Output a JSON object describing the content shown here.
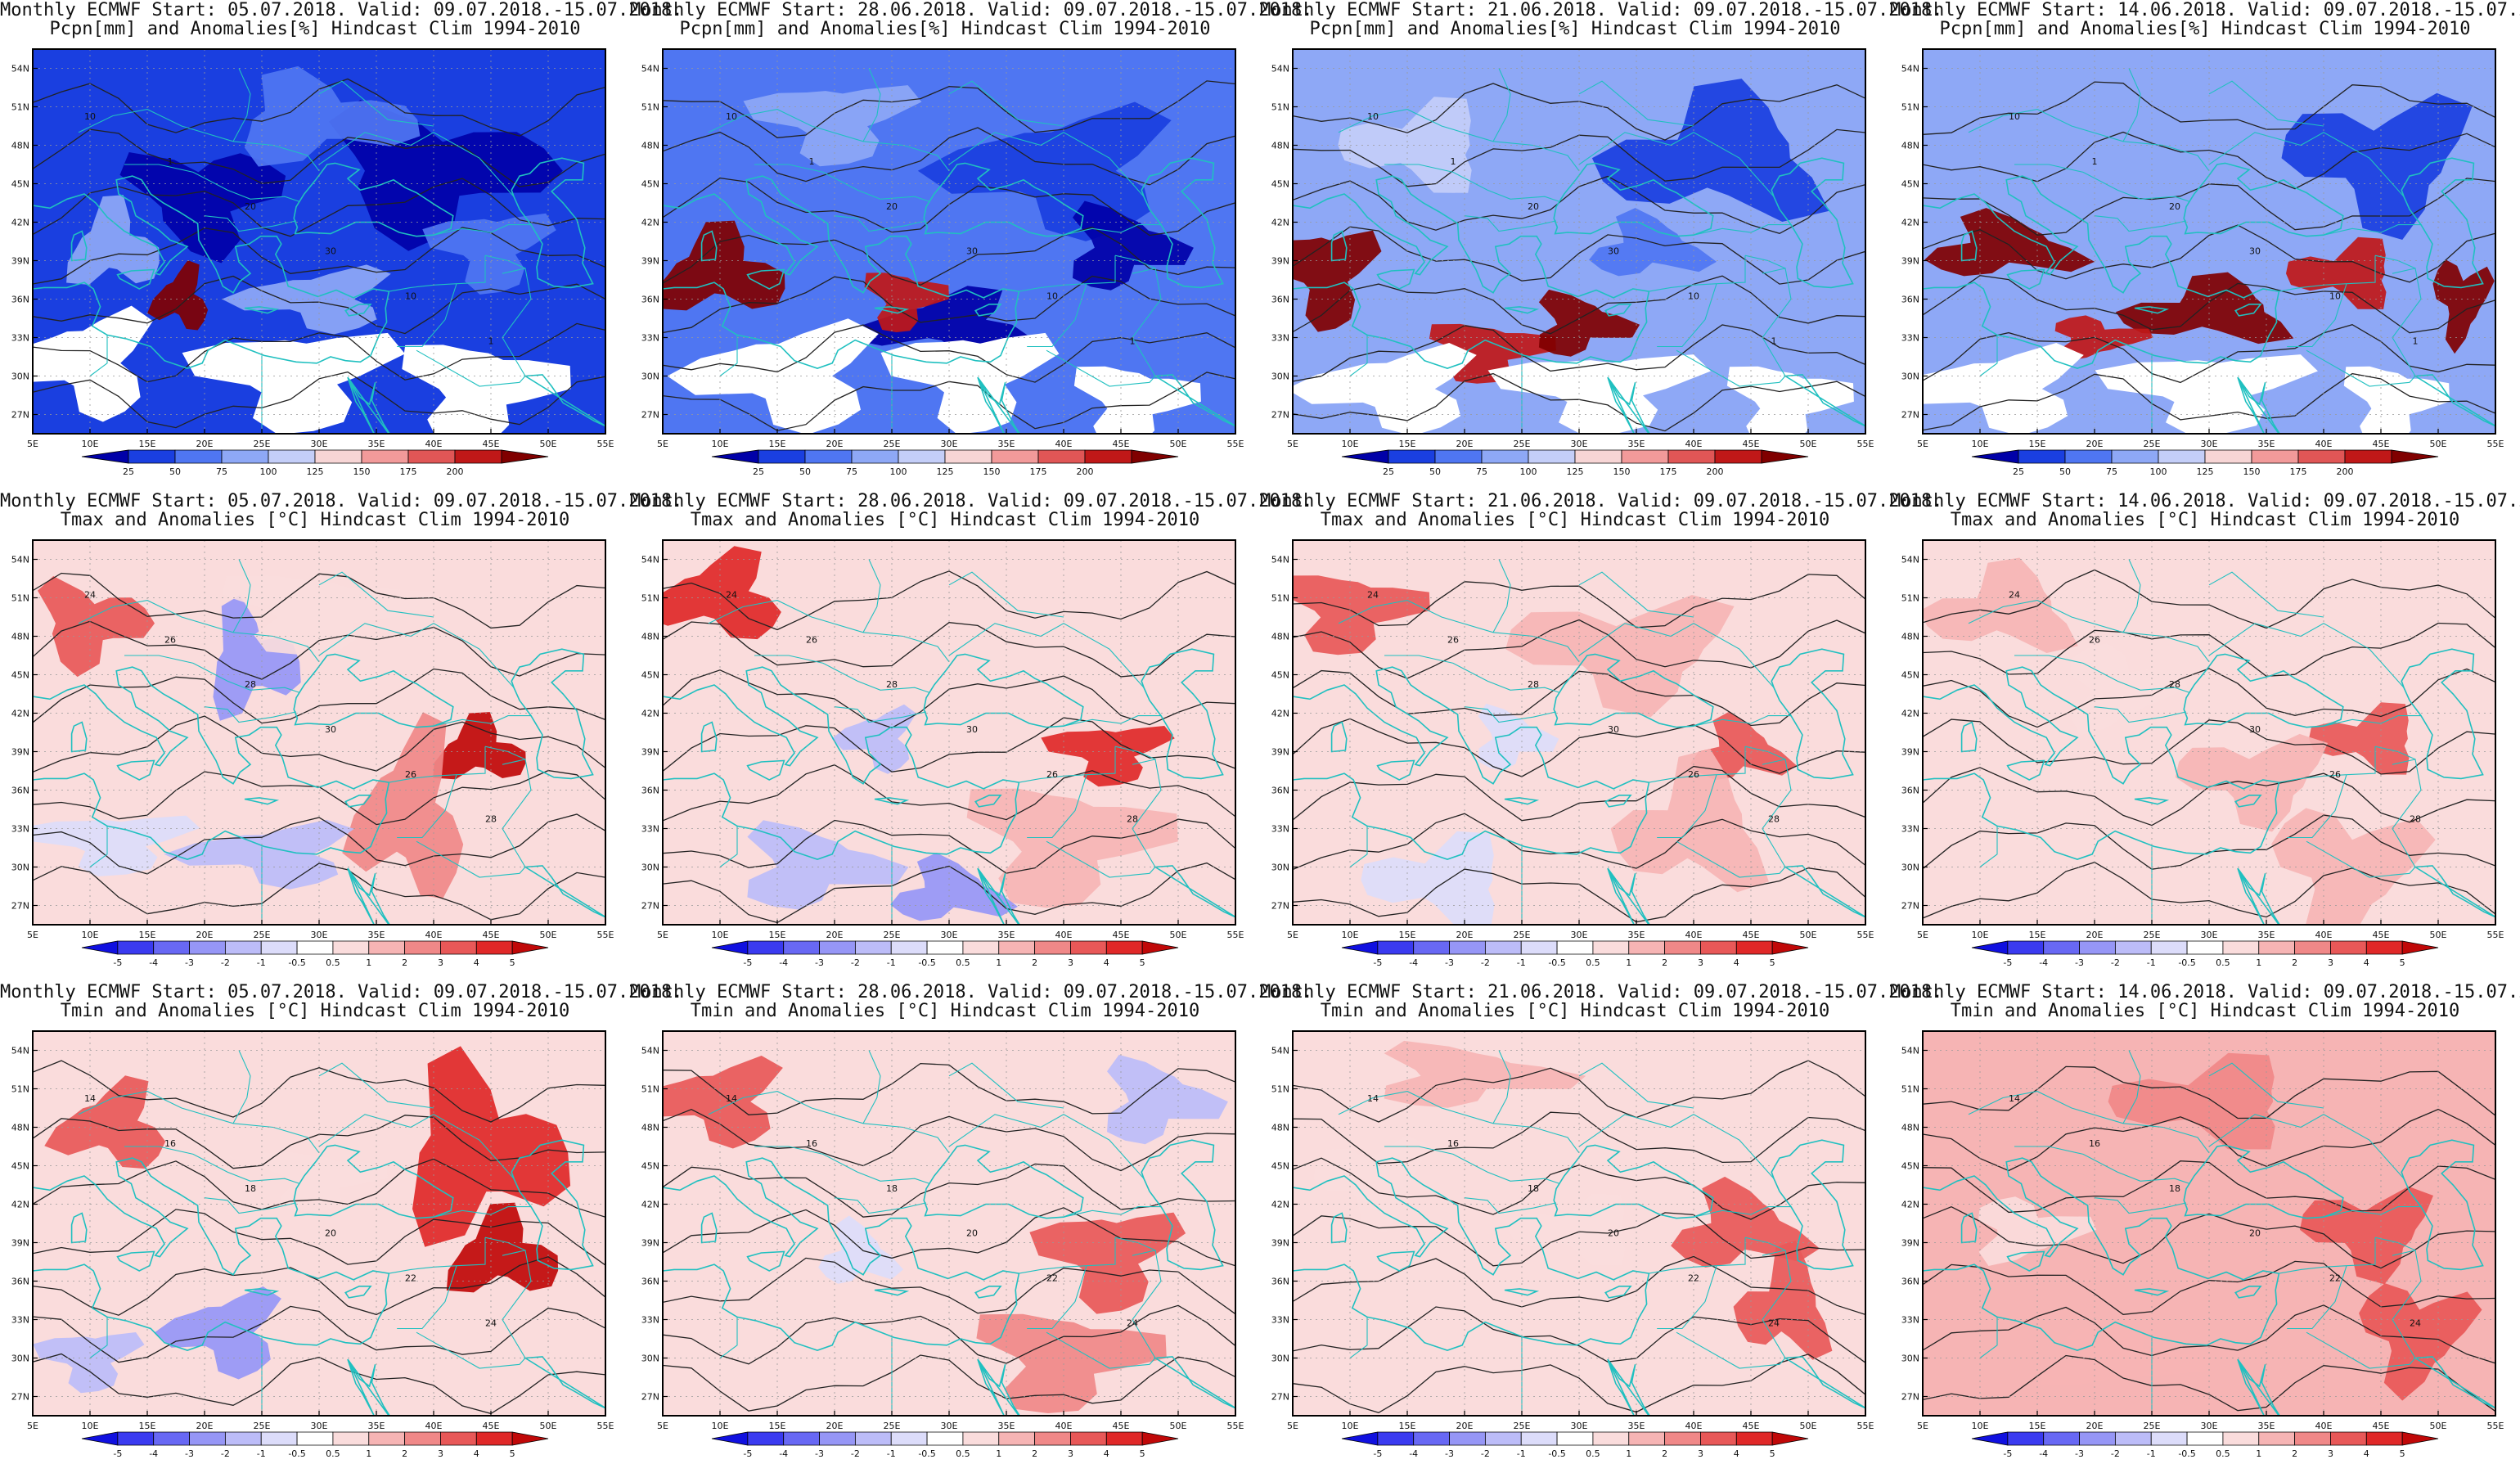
{
  "common": {
    "prefix": "Monthly ECMWF Start:",
    "valid": "Valid: 09.07.2018.-15.07.2018."
  },
  "columns": [
    {
      "start": "05.07.2018."
    },
    {
      "start": "28.06.2018."
    },
    {
      "start": "21.06.2018."
    },
    {
      "start": "14.06.2018."
    }
  ],
  "rows": [
    {
      "variable": "Pcpn[mm] and Anomalies[%] Hindcast Clim 1994-2010",
      "colorbar_labels": [
        "25",
        "50",
        "75",
        "100",
        "125",
        "150",
        "175",
        "200"
      ],
      "colorbar_colors": [
        "#0000a8",
        "#1a3fe0",
        "#4f76f2",
        "#8ea8f6",
        "#c4cef8",
        "#f7d5d5",
        "#f29a9a",
        "#e05656",
        "#c01818",
        "#800000"
      ],
      "contour_labels": [
        "10",
        "1",
        "20",
        "30",
        "10",
        "1"
      ]
    },
    {
      "variable": "Tmax and Anomalies [°C] Hindcast Clim 1994-2010",
      "colorbar_labels": [
        "-5",
        "-4",
        "-3",
        "-2",
        "-1",
        "-0.5",
        "0.5",
        "1",
        "2",
        "3",
        "4",
        "5"
      ],
      "colorbar_colors": [
        "#1010e0",
        "#3a3af0",
        "#6868f4",
        "#9696f6",
        "#bcbcf8",
        "#dcdcfa",
        "#ffffff",
        "#fadcdc",
        "#f6b4b4",
        "#f08888",
        "#e85858",
        "#e02828",
        "#c00808"
      ],
      "contour_labels": [
        "24",
        "26",
        "28",
        "30",
        "26",
        "28"
      ]
    },
    {
      "variable": "Tmin and Anomalies [°C] Hindcast Clim 1994-2010",
      "colorbar_labels": [
        "-5",
        "-4",
        "-3",
        "-2",
        "-1",
        "-0.5",
        "0.5",
        "1",
        "2",
        "3",
        "4",
        "5"
      ],
      "colorbar_colors": [
        "#1010e0",
        "#3a3af0",
        "#6868f4",
        "#9696f6",
        "#bcbcf8",
        "#dcdcfa",
        "#ffffff",
        "#fadcdc",
        "#f6b4b4",
        "#f08888",
        "#e85858",
        "#e02828",
        "#c00808"
      ],
      "contour_labels": [
        "14",
        "16",
        "18",
        "20",
        "22",
        "24"
      ]
    }
  ],
  "axes": {
    "lat_labels": [
      "54N",
      "51N",
      "48N",
      "45N",
      "42N",
      "39N",
      "36N",
      "33N",
      "30N",
      "27N"
    ],
    "lon_labels": [
      "5E",
      "10E",
      "15E",
      "20E",
      "25E",
      "30E",
      "35E",
      "40E",
      "45E",
      "50E",
      "55E"
    ]
  },
  "colors": {
    "contour": "#222222",
    "coastline": "#20c0c0",
    "frame": "#000000",
    "dry_mask": "#ffffff"
  }
}
